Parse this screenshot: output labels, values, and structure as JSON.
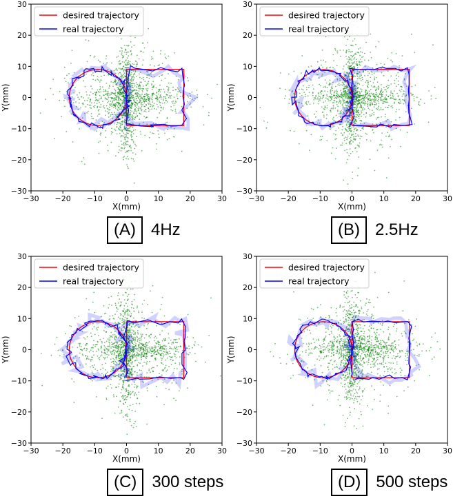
{
  "chart_data": [
    {
      "type": "line",
      "panel_label": "(A)",
      "caption": "4Hz",
      "xlabel": "X(mm)",
      "ylabel": "Y(mm)",
      "xlim": [
        -30,
        30
      ],
      "ylim": [
        -30,
        30
      ],
      "xticks": [
        -30,
        -20,
        -10,
        0,
        10,
        20,
        30
      ],
      "yticks": [
        -30,
        -20,
        -10,
        0,
        10,
        20,
        30
      ],
      "legend": "top-left",
      "series": [
        {
          "name": "desired trajectory",
          "color": "#ff0000",
          "shape": "circle-left-rectangle-right",
          "circle_center": [
            -9,
            0
          ],
          "circle_radius": 9,
          "rect": [
            0,
            -9,
            18,
            9
          ]
        },
        {
          "name": "real trajectory",
          "color": "#0000ff",
          "noise": 0.9
        },
        {
          "name": "scatter",
          "color": "#008000",
          "points": 1500
        }
      ]
    },
    {
      "type": "line",
      "panel_label": "(B)",
      "caption": "2.5Hz",
      "xlabel": "X(mm)",
      "ylabel": "Y(mm)",
      "xlim": [
        -30,
        30
      ],
      "ylim": [
        -30,
        30
      ],
      "xticks": [
        -30,
        -20,
        -10,
        0,
        10,
        20,
        30
      ],
      "yticks": [
        -30,
        -20,
        -10,
        0,
        10,
        20,
        30
      ],
      "legend": "top-left",
      "series": [
        {
          "name": "desired trajectory",
          "color": "#ff0000",
          "shape": "circle-left-rectangle-right",
          "circle_center": [
            -9,
            0
          ],
          "circle_radius": 9,
          "rect": [
            0,
            -9,
            18,
            9
          ]
        },
        {
          "name": "real trajectory",
          "color": "#0000ff",
          "noise": 0.8
        },
        {
          "name": "scatter",
          "color": "#008000",
          "points": 1500
        }
      ]
    },
    {
      "type": "line",
      "panel_label": "(C)",
      "caption": "300 steps",
      "xlabel": "X(mm)",
      "ylabel": "Y(mm)",
      "xlim": [
        -30,
        30
      ],
      "ylim": [
        -30,
        30
      ],
      "xticks": [
        -30,
        -20,
        -10,
        0,
        10,
        20,
        30
      ],
      "yticks": [
        -30,
        -20,
        -10,
        0,
        10,
        20,
        30
      ],
      "legend": "top-left",
      "series": [
        {
          "name": "desired trajectory",
          "color": "#ff0000",
          "shape": "circle-left-rectangle-right",
          "circle_center": [
            -9,
            0
          ],
          "circle_radius": 9,
          "rect": [
            0,
            -9,
            18,
            9
          ]
        },
        {
          "name": "real trajectory",
          "color": "#0000ff",
          "noise": 1.0
        },
        {
          "name": "scatter",
          "color": "#008000",
          "points": 1500
        }
      ]
    },
    {
      "type": "line",
      "panel_label": "(D)",
      "caption": "500 steps",
      "xlabel": "X(mm)",
      "ylabel": "Y(mm)",
      "xlim": [
        -30,
        30
      ],
      "ylim": [
        -30,
        30
      ],
      "xticks": [
        -30,
        -20,
        -10,
        0,
        10,
        20,
        30
      ],
      "yticks": [
        -30,
        -20,
        -10,
        0,
        10,
        20,
        30
      ],
      "legend": "top-left",
      "series": [
        {
          "name": "desired trajectory",
          "color": "#ff0000",
          "shape": "circle-left-rectangle-right",
          "circle_center": [
            -9,
            0
          ],
          "circle_radius": 9,
          "rect": [
            0,
            -9,
            18,
            9
          ]
        },
        {
          "name": "real trajectory",
          "color": "#0000ff",
          "noise": 0.85
        },
        {
          "name": "scatter",
          "color": "#008000",
          "points": 1500
        }
      ]
    }
  ]
}
